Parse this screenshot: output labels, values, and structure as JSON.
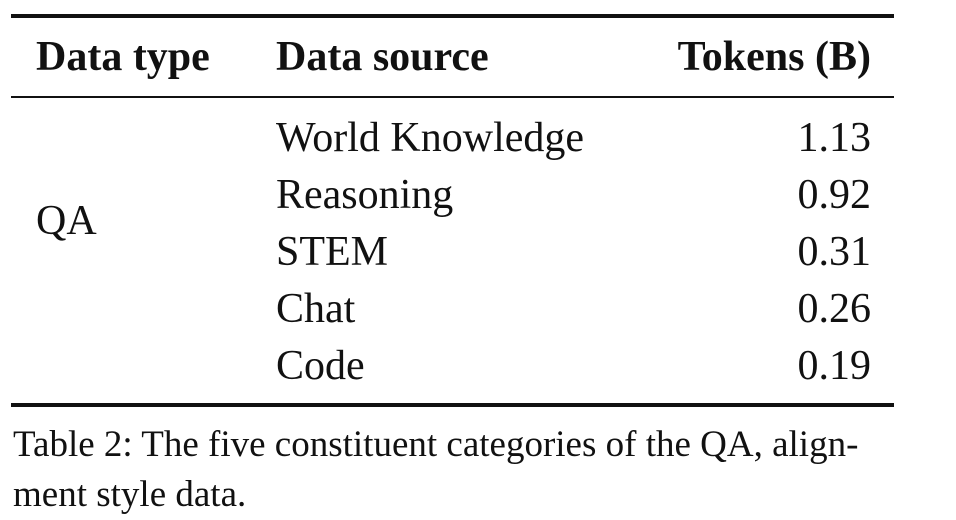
{
  "table": {
    "headers": {
      "data_type": "Data type",
      "data_source": "Data source",
      "tokens": "Tokens (B)"
    },
    "group_label": "QA",
    "rows": [
      {
        "source": "World Knowledge",
        "tokens": "1.13"
      },
      {
        "source": "Reasoning",
        "tokens": "0.92"
      },
      {
        "source": "STEM",
        "tokens": "0.31"
      },
      {
        "source": "Chat",
        "tokens": "0.26"
      },
      {
        "source": "Code",
        "tokens": "0.19"
      }
    ]
  },
  "caption": {
    "line1": "Table 2: The five constituent categories of the QA, align-",
    "line2": "ment style data."
  }
}
